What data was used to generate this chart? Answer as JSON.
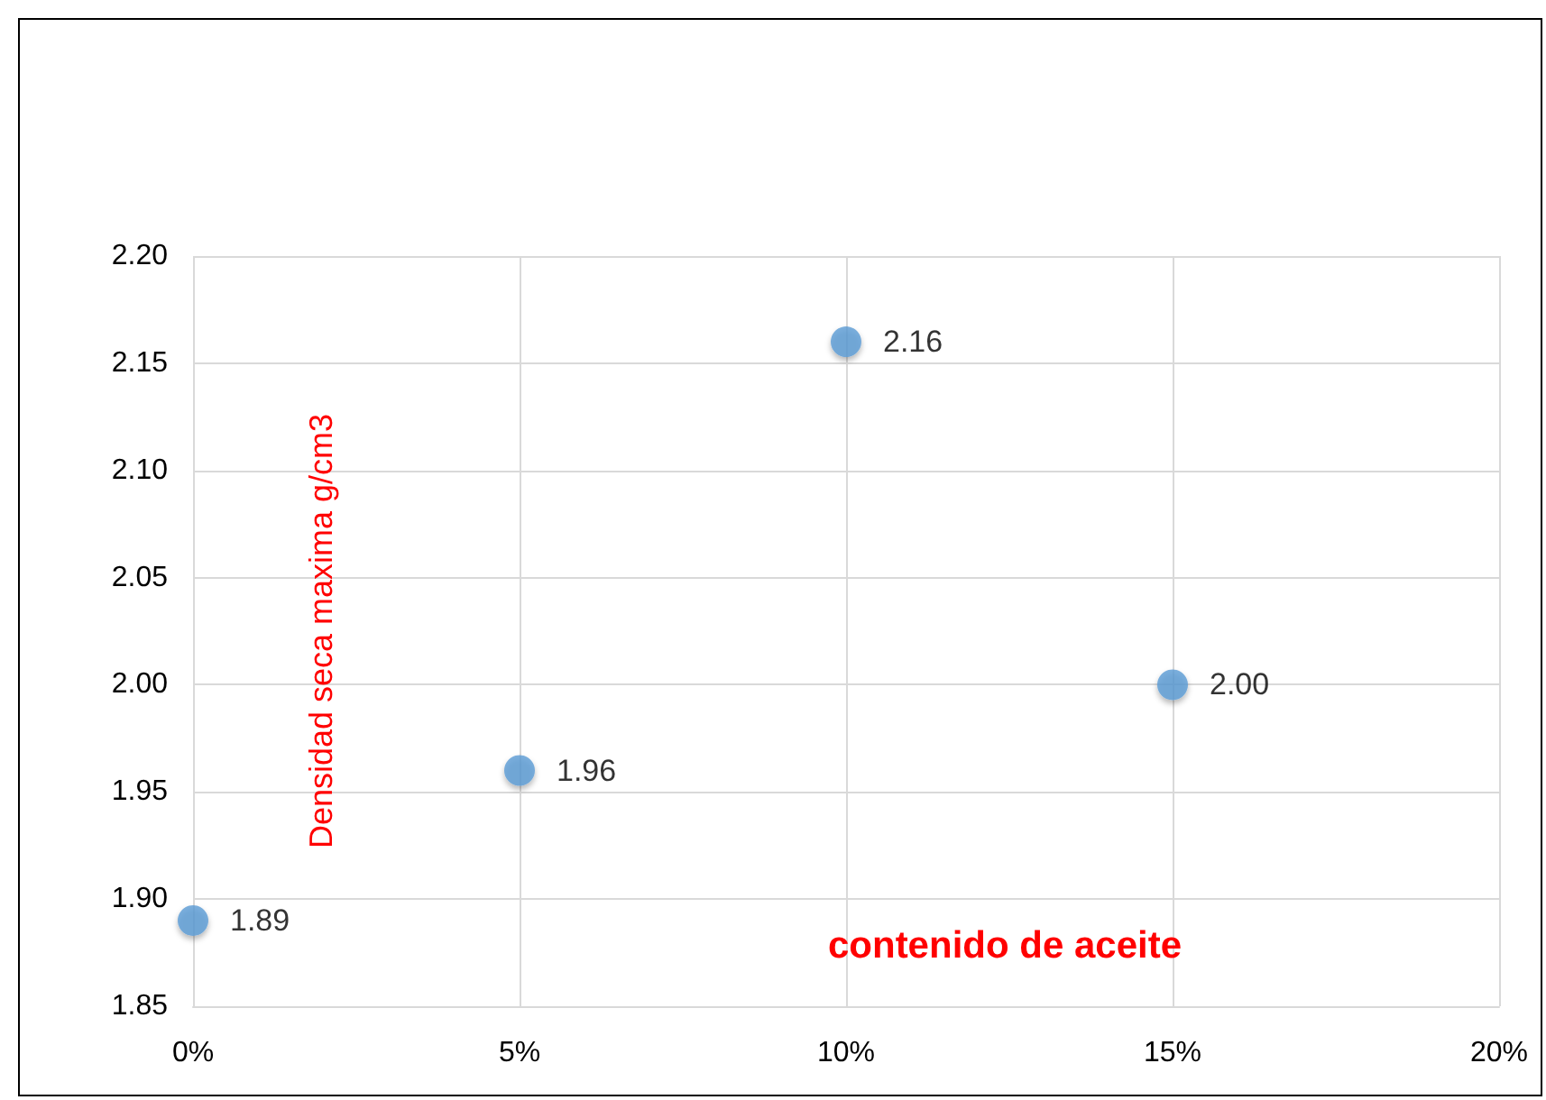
{
  "chart_data": {
    "type": "scatter",
    "xlabel": "contenido de aceite",
    "ylabel": "Densidad seca maxima g/cm3",
    "x": [
      0,
      5,
      10,
      15
    ],
    "series": [
      {
        "color": "#5b9bd5",
        "values": [
          1.89,
          1.96,
          2.16,
          2.0
        ],
        "value_labels": [
          "1.89",
          "1.96",
          "2.16",
          "2.00"
        ]
      }
    ],
    "xlim": [
      0,
      20
    ],
    "xticks": [
      {
        "value": 0,
        "label": "0%"
      },
      {
        "value": 5,
        "label": "5%"
      },
      {
        "value": 10,
        "label": "10%"
      },
      {
        "value": 15,
        "label": "15%"
      },
      {
        "value": 20,
        "label": "20%"
      }
    ],
    "ylim": [
      1.85,
      2.2
    ],
    "yticks": [
      {
        "value": 1.85,
        "label": "1.85"
      },
      {
        "value": 1.9,
        "label": "1.90"
      },
      {
        "value": 1.95,
        "label": "1.95"
      },
      {
        "value": 2.0,
        "label": "2.00"
      },
      {
        "value": 2.05,
        "label": "2.05"
      },
      {
        "value": 2.1,
        "label": "2.10"
      },
      {
        "value": 2.15,
        "label": "2.15"
      },
      {
        "value": 2.2,
        "label": "2.20"
      }
    ],
    "grid": true,
    "marker": "circle"
  }
}
